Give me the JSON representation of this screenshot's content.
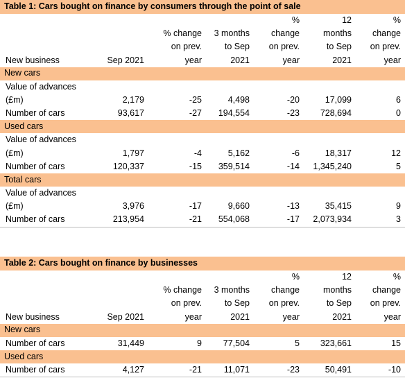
{
  "table1": {
    "title": "Table 1: Cars bought on finance by consumers through the point of sale",
    "columns": [
      [
        "New business"
      ],
      [
        "Sep 2021"
      ],
      [
        "% change",
        "on prev.",
        "year"
      ],
      [
        "3 months",
        "to Sep",
        "2021"
      ],
      [
        "%",
        "change",
        "on prev.",
        "year"
      ],
      [
        "12",
        "months",
        "to Sep",
        "2021"
      ],
      [
        "%",
        "change",
        "on prev.",
        "year"
      ]
    ],
    "sections": [
      {
        "name": "New cars",
        "rows": [
          {
            "label": [
              "Value of advances",
              "(£m)"
            ],
            "values": [
              "2,179",
              "-25",
              "4,498",
              "-20",
              "17,099",
              "6"
            ]
          },
          {
            "label": [
              "Number of cars"
            ],
            "values": [
              "93,617",
              "-27",
              "194,554",
              "-23",
              "728,694",
              "0"
            ]
          }
        ]
      },
      {
        "name": "Used cars",
        "rows": [
          {
            "label": [
              "Value of advances",
              "(£m)"
            ],
            "values": [
              "1,797",
              "-4",
              "5,162",
              "-6",
              "18,317",
              "12"
            ]
          },
          {
            "label": [
              "Number of cars"
            ],
            "values": [
              "120,337",
              "-15",
              "359,514",
              "-14",
              "1,345,240",
              "5"
            ]
          }
        ]
      },
      {
        "name": "Total cars",
        "rows": [
          {
            "label": [
              "Value of advances",
              "(£m)"
            ],
            "values": [
              "3,976",
              "-17",
              "9,660",
              "-13",
              "35,415",
              "9"
            ]
          },
          {
            "label": [
              "Number of cars"
            ],
            "values": [
              "213,954",
              "-21",
              "554,068",
              "-17",
              "2,073,934",
              "3"
            ]
          }
        ]
      }
    ]
  },
  "table2": {
    "title": "Table 2: Cars bought on finance by businesses",
    "columns": [
      [
        "New business"
      ],
      [
        "Sep 2021"
      ],
      [
        "% change",
        "on prev.",
        "year"
      ],
      [
        "3 months",
        "to Sep",
        "2021"
      ],
      [
        "%",
        "change",
        "on prev.",
        "year"
      ],
      [
        "12",
        "months",
        "to Sep",
        "2021"
      ],
      [
        "%",
        "change",
        "on prev.",
        "year"
      ]
    ],
    "sections": [
      {
        "name": "New cars",
        "rows": [
          {
            "label": [
              "Number of cars"
            ],
            "values": [
              "31,449",
              "9",
              "77,504",
              "5",
              "323,661",
              "15"
            ]
          }
        ]
      },
      {
        "name": "Used cars",
        "rows": [
          {
            "label": [
              "Number of cars"
            ],
            "values": [
              "4,127",
              "-21",
              "11,071",
              "-23",
              "50,491",
              "-10"
            ]
          }
        ]
      }
    ]
  }
}
